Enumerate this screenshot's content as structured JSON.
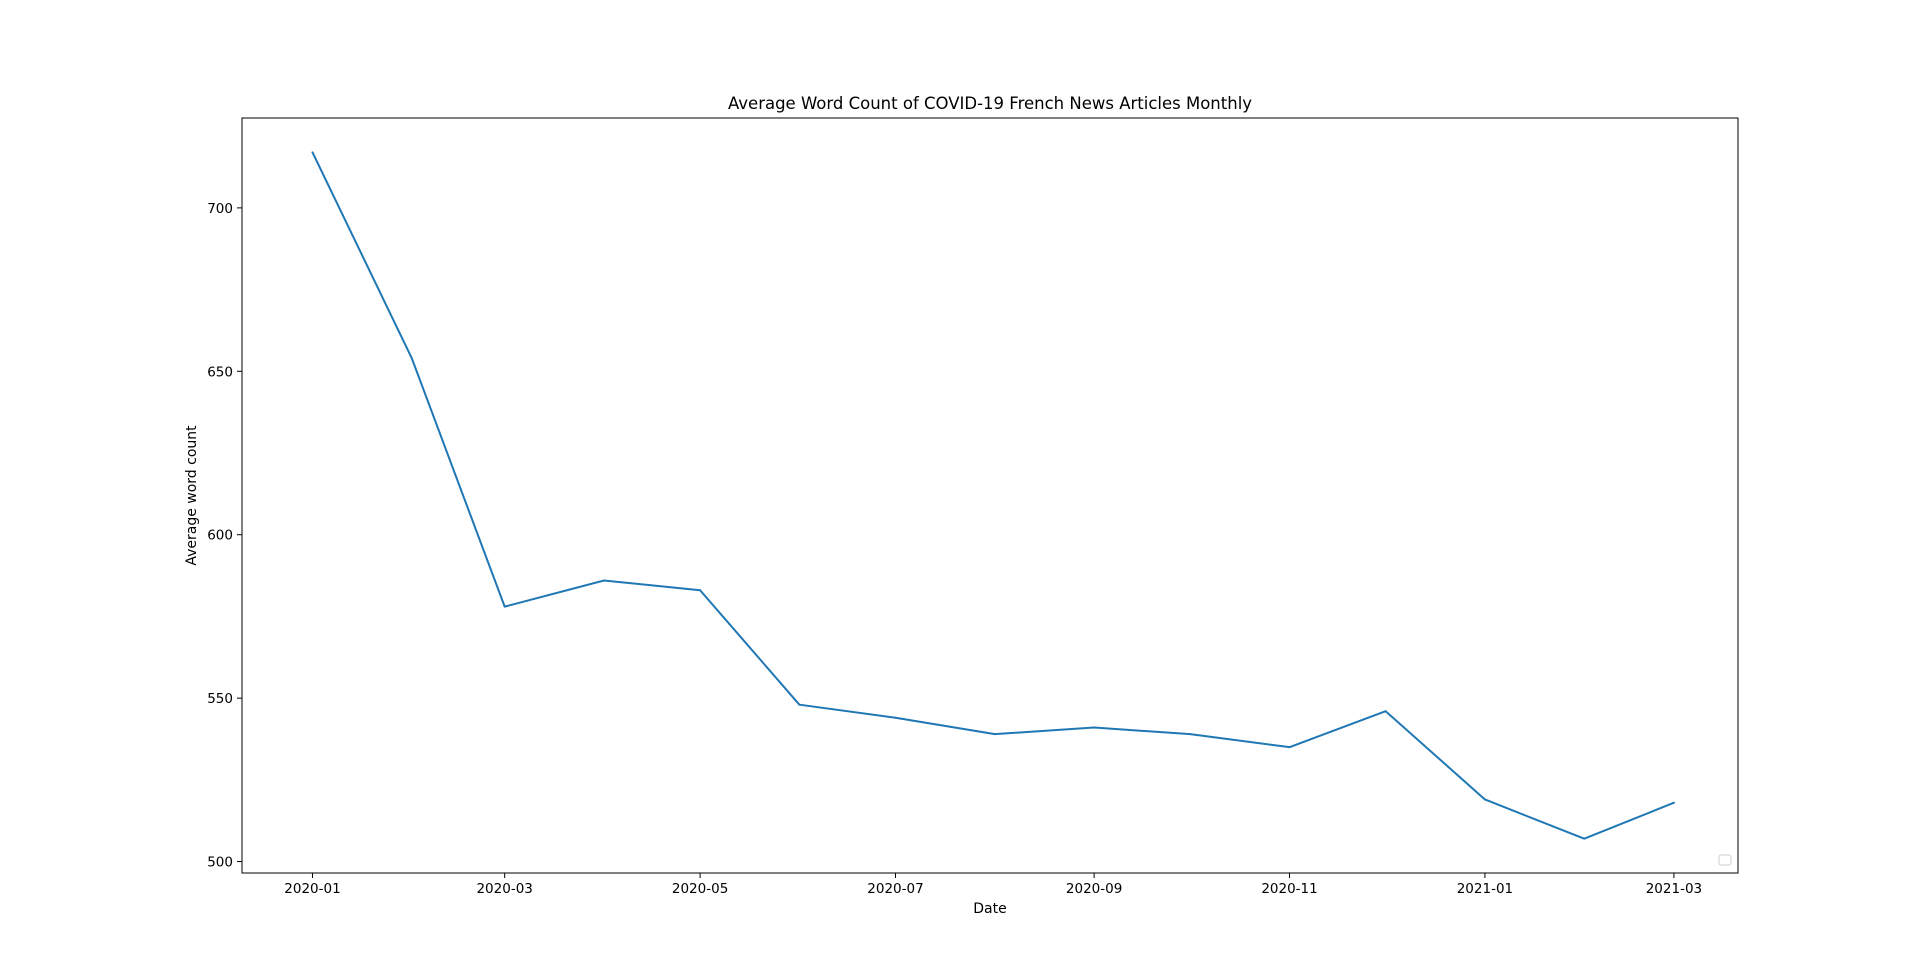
{
  "chart_data": {
    "type": "line",
    "title": "Average Word Count of COVID-19 French News Articles Monthly",
    "xlabel": "Date",
    "ylabel": "Average word count",
    "x": [
      "2020-01",
      "2020-02",
      "2020-03",
      "2020-04",
      "2020-05",
      "2020-06",
      "2020-07",
      "2020-08",
      "2020-09",
      "2020-10",
      "2020-11",
      "2020-12",
      "2021-01",
      "2021-02",
      "2021-03"
    ],
    "series": [
      {
        "values": [
          717,
          654,
          578,
          586,
          583,
          548,
          544,
          539,
          541,
          539,
          535,
          546,
          519,
          507,
          518
        ],
        "color": "#1f77b4"
      }
    ],
    "xticks": [
      "2020-01",
      "2020-03",
      "2020-05",
      "2020-07",
      "2020-09",
      "2020-11",
      "2021-01",
      "2021-03"
    ],
    "yticks": [
      500,
      550,
      600,
      650,
      700
    ],
    "xlim": [
      "2019-12-10",
      "2021-03-21"
    ],
    "ylim": [
      496.5,
      727.5
    ],
    "grid": false,
    "legend": "lower-right, empty"
  }
}
